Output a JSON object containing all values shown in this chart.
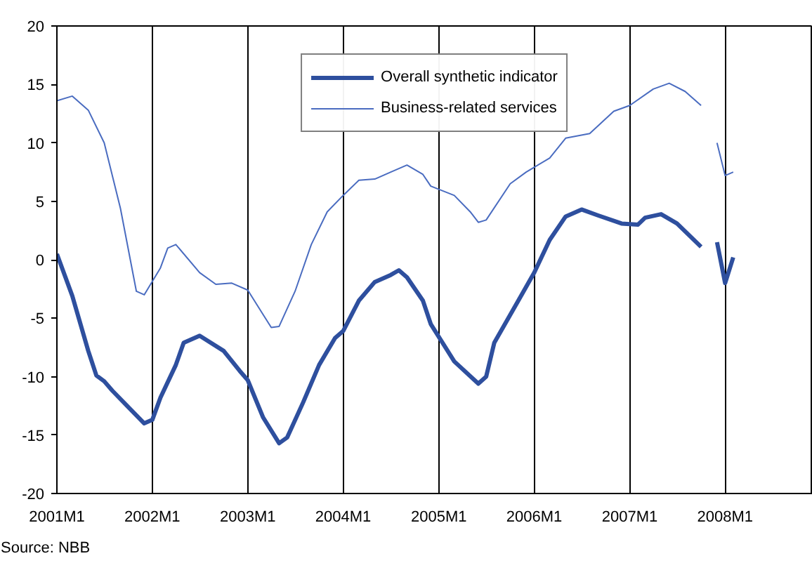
{
  "chart_data": {
    "type": "line",
    "xlim": [
      "2001-01",
      "2008-12"
    ],
    "xticks": [
      {
        "value": "2001-01",
        "label": "2001M1"
      },
      {
        "value": "2002-01",
        "label": "2002M1"
      },
      {
        "value": "2003-01",
        "label": "2003M1"
      },
      {
        "value": "2004-01",
        "label": "2004M1"
      },
      {
        "value": "2005-01",
        "label": "2005M1"
      },
      {
        "value": "2006-01",
        "label": "2006M1"
      },
      {
        "value": "2007-01",
        "label": "2007M1"
      },
      {
        "value": "2008-01",
        "label": "2008M1"
      }
    ],
    "ylim": [
      -20,
      20
    ],
    "yticks": [
      -20,
      -15,
      -10,
      -5,
      0,
      5,
      10,
      15,
      20
    ],
    "grid": "x",
    "legend": "top",
    "marker": "none",
    "annotations": [
      "Source: NBB"
    ],
    "series": [
      {
        "name": "Overall synthetic indicator",
        "color": "#2e4f9e",
        "x": [
          "2001-01",
          "2001-03",
          "2001-05",
          "2001-06",
          "2001-07",
          "2001-08",
          "2001-10",
          "2001-12",
          "2002-01",
          "2002-02",
          "2002-04",
          "2002-05",
          "2002-07",
          "2002-10",
          "2002-12",
          "2003-01",
          "2003-03",
          "2003-05",
          "2003-06",
          "2003-08",
          "2003-10",
          "2003-12",
          "2004-01",
          "2004-03",
          "2004-05",
          "2004-07",
          "2004-08",
          "2004-09",
          "2004-11",
          "2004-12",
          "2005-03",
          "2005-06",
          "2005-07",
          "2005-08",
          "2005-11",
          "2006-01",
          "2006-03",
          "2006-05",
          "2006-07",
          "2006-09",
          "2006-12",
          "2007-02",
          "2007-03",
          "2007-05",
          "2007-07",
          "2007-10",
          "2007-11",
          "2007-12",
          "2008-01",
          "2008-02"
        ],
        "values": [
          0.5,
          -3.1,
          -7.8,
          -9.9,
          -10.4,
          -11.2,
          -12.6,
          -14.0,
          -13.7,
          -11.8,
          -9.0,
          -7.1,
          -6.5,
          -7.8,
          -9.5,
          -10.3,
          -13.5,
          -15.7,
          -15.2,
          -12.2,
          -9.0,
          -6.7,
          -6.1,
          -3.5,
          -1.9,
          -1.3,
          -0.9,
          -1.5,
          -3.5,
          -5.5,
          -8.7,
          -10.6,
          -10.0,
          -7.1,
          -3.5,
          -1.1,
          1.7,
          3.7,
          4.3,
          3.8,
          3.1,
          3.0,
          3.6,
          3.9,
          3.1,
          1.1,
          null,
          1.5,
          -2.0,
          0.2
        ]
      },
      {
        "name": "Business-related services",
        "color": "#4a6cc0",
        "x": [
          "2001-01",
          "2001-03",
          "2001-05",
          "2001-07",
          "2001-09",
          "2001-11",
          "2001-12",
          "2002-02",
          "2002-03",
          "2002-04",
          "2002-07",
          "2002-09",
          "2002-11",
          "2003-01",
          "2003-03",
          "2003-04",
          "2003-05",
          "2003-07",
          "2003-09",
          "2003-11",
          "2004-01",
          "2004-03",
          "2004-05",
          "2004-07",
          "2004-09",
          "2004-11",
          "2004-12",
          "2005-03",
          "2005-05",
          "2005-06",
          "2005-07",
          "2005-10",
          "2005-12",
          "2006-03",
          "2006-05",
          "2006-08",
          "2006-11",
          "2007-01",
          "2007-04",
          "2007-06",
          "2007-08",
          "2007-10",
          "2007-11",
          "2007-12",
          "2008-01",
          "2008-02"
        ],
        "values": [
          13.6,
          14.0,
          12.8,
          10.0,
          4.4,
          -2.7,
          -3.0,
          -0.7,
          1.0,
          1.3,
          -1.1,
          -2.1,
          -2.0,
          -2.6,
          -4.7,
          -5.8,
          -5.7,
          -2.7,
          1.3,
          4.1,
          5.5,
          6.8,
          6.9,
          7.5,
          8.1,
          7.3,
          6.3,
          5.5,
          4.1,
          3.2,
          3.4,
          6.5,
          7.5,
          8.7,
          10.4,
          10.8,
          12.7,
          13.2,
          14.6,
          15.1,
          14.4,
          13.2,
          null,
          10.0,
          7.2,
          7.5
        ]
      }
    ]
  }
}
